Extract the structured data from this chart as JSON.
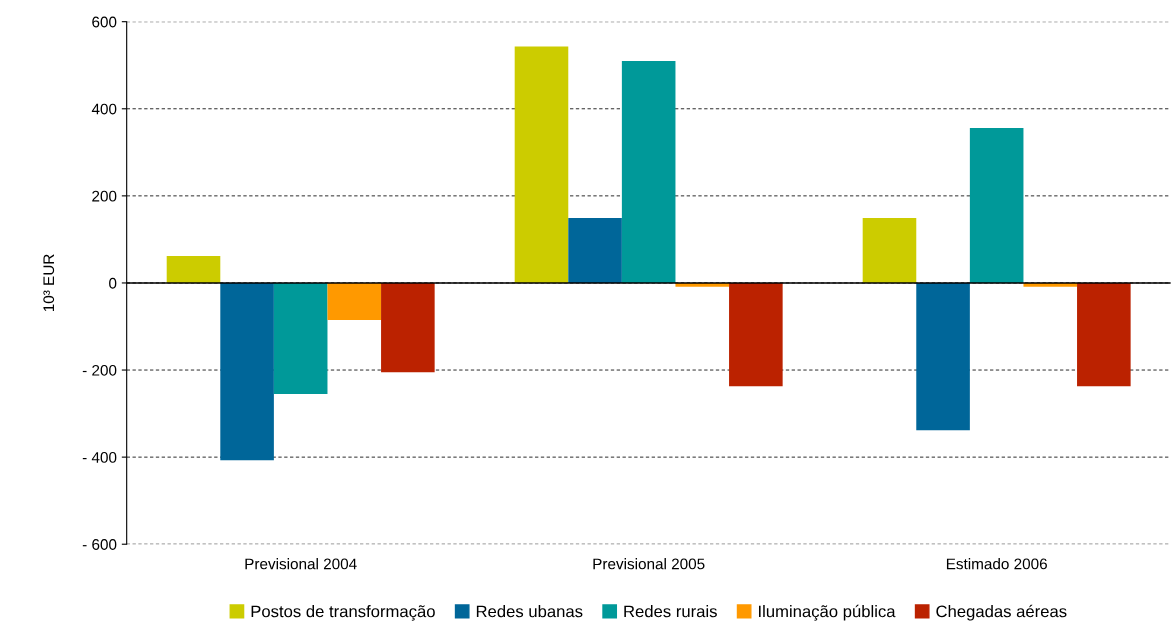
{
  "chart_data": {
    "type": "bar",
    "ylabel": "10³ EUR",
    "categories": [
      "Previsional 2004",
      "Previsional 2005",
      "Estimado 2006"
    ],
    "series": [
      {
        "name": "Postos de transformação",
        "color": "#cccc00",
        "values": [
          62,
          543,
          149
        ]
      },
      {
        "name": "Redes ubanas",
        "color": "#006699",
        "values": [
          -407,
          149,
          -338
        ]
      },
      {
        "name": "Redes rurais",
        "color": "#009999",
        "values": [
          -255,
          510,
          356
        ]
      },
      {
        "name": "Iluminação pública",
        "color": "#ff9900",
        "values": [
          -85,
          -9,
          -9
        ]
      },
      {
        "name": "Chegadas aéreas",
        "color": "#bb2200",
        "values": [
          -205,
          -237,
          -237
        ]
      }
    ],
    "ylim": [
      -600,
      600
    ],
    "yticks": [
      {
        "value": -600,
        "label": "- 600"
      },
      {
        "value": -400,
        "label": "- 400"
      },
      {
        "value": -200,
        "label": "- 200"
      },
      0,
      200,
      400,
      600
    ],
    "grid": "y",
    "legend": "bottom"
  }
}
